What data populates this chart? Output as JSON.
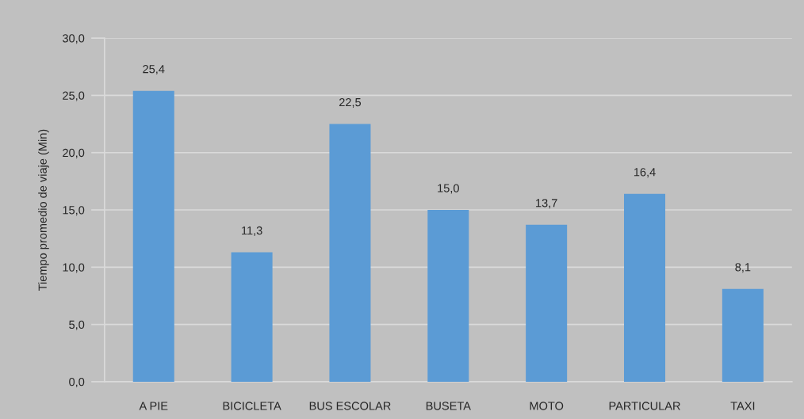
{
  "chart_data": {
    "type": "bar",
    "ylabel": "Tiempo promedio de viaje (Min)",
    "categories": [
      "A PIE",
      "BICICLETA",
      "BUS ESCOLAR",
      "BUSETA",
      "MOTO",
      "PARTICULAR",
      "TAXI"
    ],
    "values": [
      25.4,
      11.3,
      22.5,
      15.0,
      13.7,
      16.4,
      8.1
    ],
    "color": "#5b9bd5",
    "value_labels": [
      "25,4",
      "11,3",
      "22,5",
      "15,0",
      "13,7",
      "16,4",
      "8,1"
    ],
    "ylim": [
      0,
      30
    ],
    "yticks": [
      {
        "value": 0,
        "label": "0,0"
      },
      {
        "value": 5,
        "label": "5,0"
      },
      {
        "value": 10,
        "label": "10,0"
      },
      {
        "value": 15,
        "label": "15,0"
      },
      {
        "value": 20,
        "label": "20,0"
      },
      {
        "value": 25,
        "label": "25,0"
      },
      {
        "value": 30,
        "label": "30,0"
      }
    ],
    "grid": "y"
  }
}
